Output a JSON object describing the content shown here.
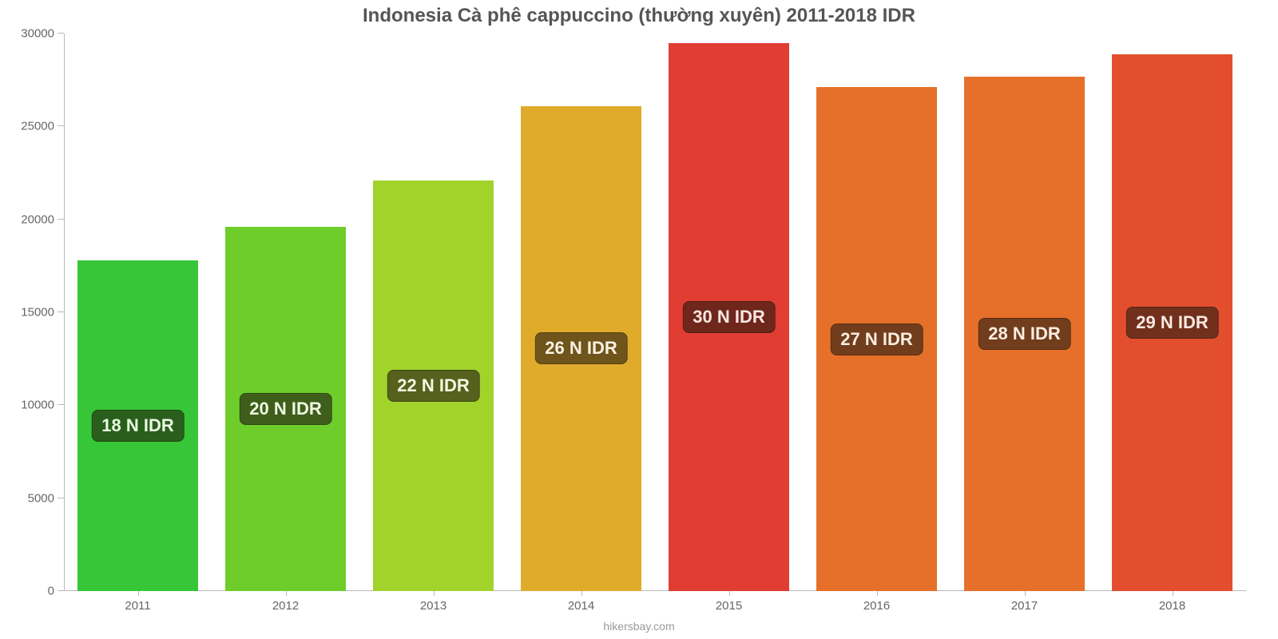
{
  "chart": {
    "type": "bar",
    "title": "Indonesia Cà phê cappuccino (thường xuyên) 2011-2018 IDR",
    "title_fontsize": 24,
    "title_color": "#555555",
    "background_color": "#ffffff",
    "axis_color": "#bbbbbb",
    "tick_label_color": "#666666",
    "tick_label_fontsize": 15,
    "attribution": "hikersbay.com",
    "attribution_color": "#999999",
    "y_axis": {
      "min": 0,
      "max": 30000,
      "tick_step": 5000,
      "ticks": [
        0,
        5000,
        10000,
        15000,
        20000,
        25000,
        30000
      ]
    },
    "bars": [
      {
        "year": "2011",
        "value": 17800,
        "color": "#37c637",
        "label": "18 N IDR",
        "label_bg": "#2a5e1c",
        "label_fg": "#e9f8e2"
      },
      {
        "year": "2012",
        "value": 19600,
        "color": "#6ecd2a",
        "label": "20 N IDR",
        "label_bg": "#3f5e1c",
        "label_fg": "#eef8e2"
      },
      {
        "year": "2013",
        "value": 22100,
        "color": "#a2d32b",
        "label": "22 N IDR",
        "label_bg": "#55611c",
        "label_fg": "#f3f8e2"
      },
      {
        "year": "2014",
        "value": 26100,
        "color": "#e0ab2a",
        "label": "26 N IDR",
        "label_bg": "#6f541c",
        "label_fg": "#faf2e2"
      },
      {
        "year": "2015",
        "value": 29500,
        "color": "#e13d33",
        "label": "30 N IDR",
        "label_bg": "#6f271c",
        "label_fg": "#fbe7e2"
      },
      {
        "year": "2016",
        "value": 27100,
        "color": "#e6702a",
        "label": "27 N IDR",
        "label_bg": "#713d1c",
        "label_fg": "#fbede2"
      },
      {
        "year": "2017",
        "value": 27700,
        "color": "#e6702a",
        "label": "28 N IDR",
        "label_bg": "#713d1c",
        "label_fg": "#fbede2"
      },
      {
        "year": "2018",
        "value": 28900,
        "color": "#e34f2e",
        "label": "29 N IDR",
        "label_bg": "#70301c",
        "label_fg": "#fbe9e2"
      }
    ],
    "bar_width_ratio": 0.82,
    "bar_label_fontsize": 22
  }
}
